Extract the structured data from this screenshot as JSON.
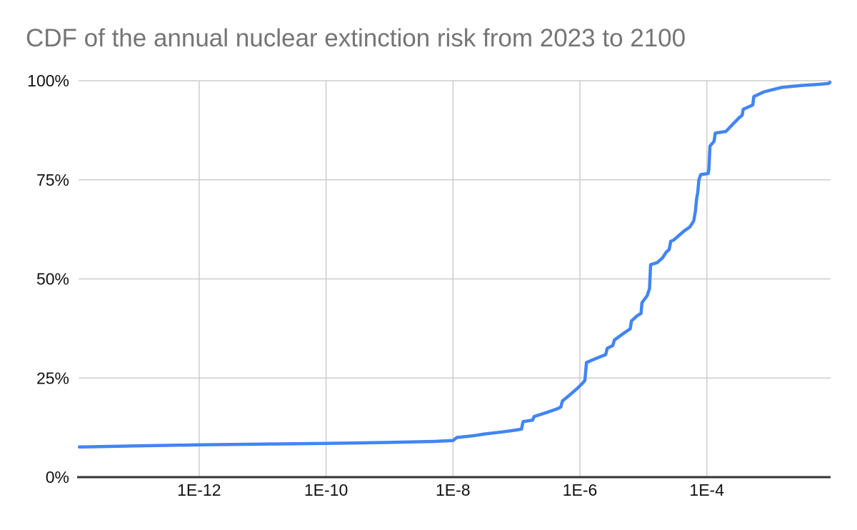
{
  "chart_data": {
    "type": "line",
    "title": "CDF of the annual nuclear extinction risk from 2023 to 2100",
    "xlabel": "",
    "ylabel": "",
    "legend": false,
    "grid": true,
    "x_axis": {
      "scale": "log10",
      "range_log10": [
        -13.9,
        -2.05
      ],
      "tick_values": [
        1e-12,
        1e-10,
        1e-08,
        1e-06,
        0.0001
      ],
      "tick_labels": [
        "1E-12",
        "1E-10",
        "1E-8",
        "1E-6",
        "1E-4"
      ]
    },
    "y_axis": {
      "scale": "linear",
      "range": [
        0,
        100
      ],
      "unit": "%",
      "tick_values": [
        0,
        25,
        50,
        75,
        100
      ],
      "tick_labels": [
        "0%",
        "25%",
        "50%",
        "75%",
        "100%"
      ]
    },
    "series": [
      {
        "name": "CDF of annual nuclear extinction risk",
        "color": "#4285f4",
        "points": [
          [
            1.3e-14,
            7.6
          ],
          [
            1e-13,
            7.9
          ],
          [
            1e-12,
            8.15
          ],
          [
            1e-11,
            8.35
          ],
          [
            1e-10,
            8.5
          ],
          [
            1e-09,
            8.75
          ],
          [
            5e-09,
            9.0
          ],
          [
            1e-08,
            9.25
          ],
          [
            1.15e-08,
            10.0
          ],
          [
            2e-08,
            10.4
          ],
          [
            3.2e-08,
            10.9
          ],
          [
            6e-08,
            11.4
          ],
          [
            1e-07,
            11.9
          ],
          [
            1.2e-07,
            12.1
          ],
          [
            1.27e-07,
            14.0
          ],
          [
            1.8e-07,
            14.4
          ],
          [
            1.9e-07,
            15.3
          ],
          [
            3e-07,
            16.3
          ],
          [
            4.5e-07,
            17.3
          ],
          [
            5e-07,
            17.7
          ],
          [
            5.3e-07,
            19.2
          ],
          [
            7e-07,
            20.8
          ],
          [
            9e-07,
            22.3
          ],
          [
            1.1e-06,
            23.7
          ],
          [
            1.2e-06,
            24.4
          ],
          [
            1.27e-06,
            28.9
          ],
          [
            1.6e-06,
            29.6
          ],
          [
            2.2e-06,
            30.5
          ],
          [
            2.55e-06,
            30.9
          ],
          [
            2.7e-06,
            32.5
          ],
          [
            3.3e-06,
            33.2
          ],
          [
            3.5e-06,
            34.6
          ],
          [
            5e-06,
            36.4
          ],
          [
            6.2e-06,
            37.4
          ],
          [
            6.5e-06,
            39.4
          ],
          [
            8e-06,
            40.7
          ],
          [
            9.2e-06,
            41.3
          ],
          [
            9.5e-06,
            44.0
          ],
          [
            1.15e-05,
            45.8
          ],
          [
            1.25e-05,
            47.6
          ],
          [
            1.3e-05,
            53.6
          ],
          [
            1.65e-05,
            54.1
          ],
          [
            2e-05,
            55.3
          ],
          [
            2.3e-05,
            56.8
          ],
          [
            2.55e-05,
            57.4
          ],
          [
            2.7e-05,
            59.5
          ],
          [
            3e-05,
            59.8
          ],
          [
            3.6e-05,
            60.9
          ],
          [
            4.3e-05,
            62.0
          ],
          [
            5.4e-05,
            63.1
          ],
          [
            6.2e-05,
            64.6
          ],
          [
            6.6e-05,
            67.0
          ],
          [
            6.9e-05,
            70.2
          ],
          [
            7.2e-05,
            71.8
          ],
          [
            7.5e-05,
            75.0
          ],
          [
            8e-05,
            76.3
          ],
          [
            0.000105,
            76.6
          ],
          [
            0.000108,
            77.8
          ],
          [
            0.000112,
            83.5
          ],
          [
            0.00013,
            84.7
          ],
          [
            0.000136,
            86.8
          ],
          [
            0.0002,
            87.2
          ],
          [
            0.00027,
            89.4
          ],
          [
            0.00032,
            90.6
          ],
          [
            0.00036,
            91.3
          ],
          [
            0.000375,
            92.8
          ],
          [
            0.00053,
            93.9
          ],
          [
            0.00055,
            96.0
          ],
          [
            0.0008,
            97.2
          ],
          [
            0.0015,
            98.3
          ],
          [
            0.003,
            98.8
          ],
          [
            0.006,
            99.1
          ],
          [
            0.0083,
            99.3
          ],
          [
            0.0087,
            99.6
          ]
        ]
      }
    ]
  },
  "colors": {
    "background": "#ffffff",
    "title": "#757575",
    "gridline": "#cccccc",
    "axis_line": "#333333",
    "tick_text": "#111111",
    "line": "#4285f4"
  }
}
